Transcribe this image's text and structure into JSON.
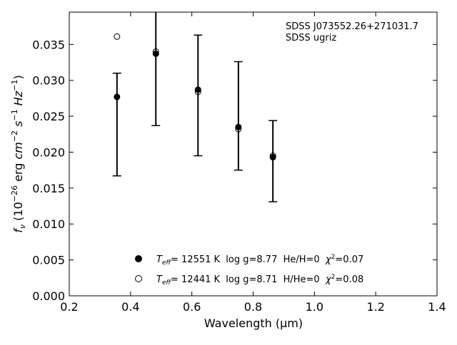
{
  "chart_data": {
    "type": "scatter",
    "title": "",
    "xlabel": "Wavelength (μm)",
    "ylabel_parts": {
      "symbol": "f",
      "symbol_sub": "ν",
      "open": " (10",
      "exp1": "−26",
      "mid": " erg ",
      "unit_cm": "cm",
      "exp2": "−2",
      "unit_s": " s",
      "exp3": "−1",
      "unit_hz": " Hz",
      "exp4": "−1",
      "close": ")"
    },
    "xlim": [
      0.2,
      1.4
    ],
    "ylim": [
      0.0,
      0.0395
    ],
    "xticks": [
      "0.2",
      "0.4",
      "0.6",
      "0.8",
      "1.0",
      "1.2",
      "1.4"
    ],
    "xtick_values": [
      0.2,
      0.4,
      0.6,
      0.8,
      1.0,
      1.2,
      1.4
    ],
    "yticks": [
      "0.000",
      "0.005",
      "0.010",
      "0.015",
      "0.020",
      "0.025",
      "0.030",
      "0.035"
    ],
    "ytick_values": [
      0.0,
      0.005,
      0.01,
      0.015,
      0.02,
      0.025,
      0.03,
      0.035
    ],
    "grid": false,
    "annotation": [
      "SDSS J073552.26+271031.7",
      "SDSS ugriz"
    ],
    "observed": {
      "x": [
        0.3557,
        0.4825,
        0.6201,
        0.7519,
        0.8645
      ],
      "y": [
        0.0277,
        0.0337,
        0.0287,
        0.0235,
        0.0193
      ],
      "yerr_low": [
        0.0167,
        0.0237,
        0.0195,
        0.0175,
        0.0131
      ],
      "yerr_high": [
        0.031,
        0.0398,
        0.0363,
        0.0326,
        0.0244
      ]
    },
    "series": [
      {
        "marker": "filled-circle",
        "x": [
          0.3557,
          0.4825,
          0.6201,
          0.7519,
          0.8645
        ],
        "y": [
          0.0277,
          0.0337,
          0.0287,
          0.0235,
          0.0193
        ],
        "legend": {
          "teff_label": "T",
          "teff_sub": "eff",
          "teff_value": "= 12551 K  log g=8.77  He/H=0  ",
          "chi_label": "χ",
          "chi_sup": "2",
          "chi_value": "=0.07"
        }
      },
      {
        "marker": "open-circle",
        "x": [
          0.3557,
          0.4825,
          0.6201,
          0.7519,
          0.8645
        ],
        "y": [
          0.0361,
          0.034,
          0.0284,
          0.0232,
          0.0195
        ],
        "legend": {
          "teff_label": "T",
          "teff_sub": "eff",
          "teff_value": "= 12441 K  log g=8.71  H/He=0  ",
          "chi_label": "χ",
          "chi_sup": "2",
          "chi_value": "=0.08"
        }
      }
    ],
    "legend_placement": "lower-center",
    "colors": {
      "marker": "#000000",
      "background": "#ffffff"
    }
  }
}
